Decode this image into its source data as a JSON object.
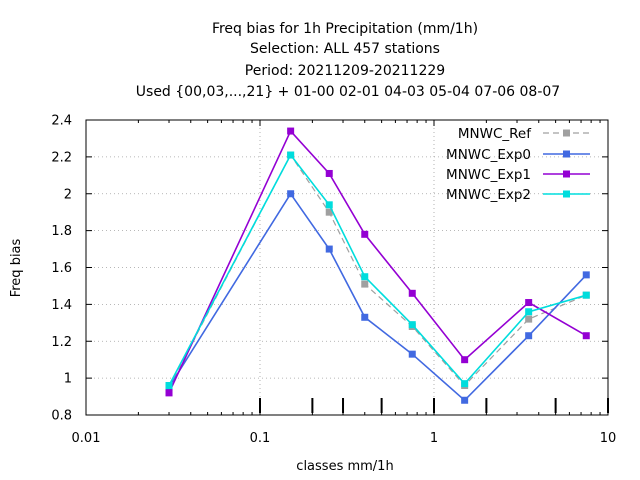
{
  "chart_data": {
    "type": "line",
    "title_lines": [
      "Freq bias  for 1h Precipitation (mm/1h)",
      "Selection: ALL    457 stations",
      "Period: 20211209-20211229",
      "Used {00,03,...,21} + 01-00 02-01 04-03 05-04 07-06 08-07"
    ],
    "xlabel": "classes mm/1h",
    "ylabel": "Freq bias",
    "xscale": "log",
    "xlim": [
      0.01,
      10
    ],
    "ylim": [
      0.8,
      2.4
    ],
    "grid": true,
    "legend_position": "top-right",
    "x_ticks": [
      {
        "value": 0.01,
        "label": "0.01"
      },
      {
        "value": 0.1,
        "label": "0.1"
      },
      {
        "value": 1,
        "label": "1"
      },
      {
        "value": 10,
        "label": "10"
      }
    ],
    "y_ticks": [
      {
        "value": 0.8,
        "label": "0.8"
      },
      {
        "value": 1.0,
        "label": "1"
      },
      {
        "value": 1.2,
        "label": "1.2"
      },
      {
        "value": 1.4,
        "label": "1.4"
      },
      {
        "value": 1.6,
        "label": "1.6"
      },
      {
        "value": 1.8,
        "label": "1.8"
      },
      {
        "value": 2.0,
        "label": "2"
      },
      {
        "value": 2.2,
        "label": "2.2"
      },
      {
        "value": 2.4,
        "label": "2.4"
      }
    ],
    "class_limit_marks": [
      0.1,
      0.2,
      0.3,
      0.5,
      1,
      2,
      5,
      10
    ],
    "x": [
      0.03,
      0.15,
      0.25,
      0.4,
      0.75,
      1.5,
      3.5,
      7.5
    ],
    "series": [
      {
        "name": "MNWC_Ref",
        "color": "#a0a0a0",
        "dashed": true,
        "values": [
          0.95,
          2.21,
          1.9,
          1.51,
          1.28,
          0.96,
          1.32,
          1.45
        ]
      },
      {
        "name": "MNWC_Exp0",
        "color": "#4169e1",
        "dashed": false,
        "values": [
          0.95,
          2.0,
          1.7,
          1.33,
          1.13,
          0.88,
          1.23,
          1.56
        ]
      },
      {
        "name": "MNWC_Exp1",
        "color": "#9400d3",
        "dashed": false,
        "values": [
          0.92,
          2.34,
          2.11,
          1.78,
          1.46,
          1.1,
          1.41,
          1.23
        ]
      },
      {
        "name": "MNWC_Exp2",
        "color": "#00dddd",
        "dashed": false,
        "values": [
          0.96,
          2.21,
          1.94,
          1.55,
          1.29,
          0.97,
          1.36,
          1.45
        ]
      }
    ]
  }
}
